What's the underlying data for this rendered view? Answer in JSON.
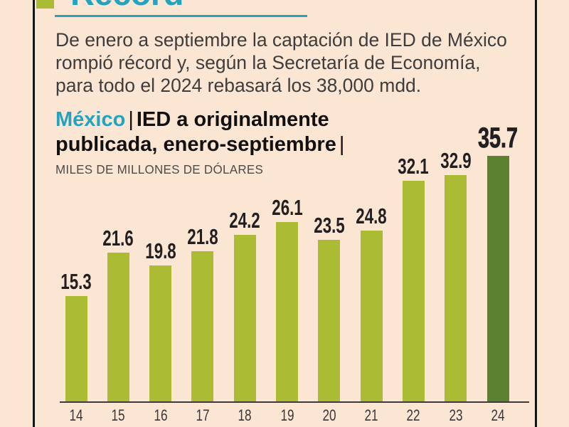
{
  "page": {
    "background": "#fae6d3",
    "frame_color": "#141414"
  },
  "header": {
    "title": "Récord",
    "title_color": "#23a3c0",
    "bullet_color": "#abbc34",
    "underline_color": "#23a3c0",
    "intro_lines": [
      "De enero a septiembre la captación de IED de México",
      "rompió récord y, según la Secretaría de Economía,",
      "para todo el 2024 rebasará los 38,000 mdd."
    ],
    "intro_color": "#3f3c3d"
  },
  "chart_header": {
    "accent": "México",
    "accent_color": "#23a3c0",
    "separator": "|",
    "title_line1": "IED a originalmente",
    "title_line2": "publicada, enero-septiembre",
    "title_color": "#131011",
    "subtitle": "MILES DE MILLONES DE DÓLARES",
    "subtitle_color": "#4e4a47"
  },
  "chart_data": {
    "type": "bar",
    "title": "México | IED a originalmente publicada, enero-septiembre",
    "ylabel": "MILES DE MILLONES DE DÓLARES",
    "xlabel": "",
    "categories": [
      "14",
      "15",
      "16",
      "17",
      "18",
      "19",
      "20",
      "21",
      "22",
      "23",
      "24"
    ],
    "values": [
      15.3,
      21.6,
      19.8,
      21.8,
      24.2,
      26.1,
      23.5,
      24.8,
      32.1,
      32.9,
      35.7
    ],
    "bar_color": "#abbc34",
    "highlight_color": "#5a8231",
    "highlight_index": 10,
    "value_label_color": "#231f20",
    "x_label_color": "#3a3637",
    "axis_color": "#3b3b3b",
    "ylim": [
      0,
      38
    ],
    "grid": false,
    "legend": false
  }
}
